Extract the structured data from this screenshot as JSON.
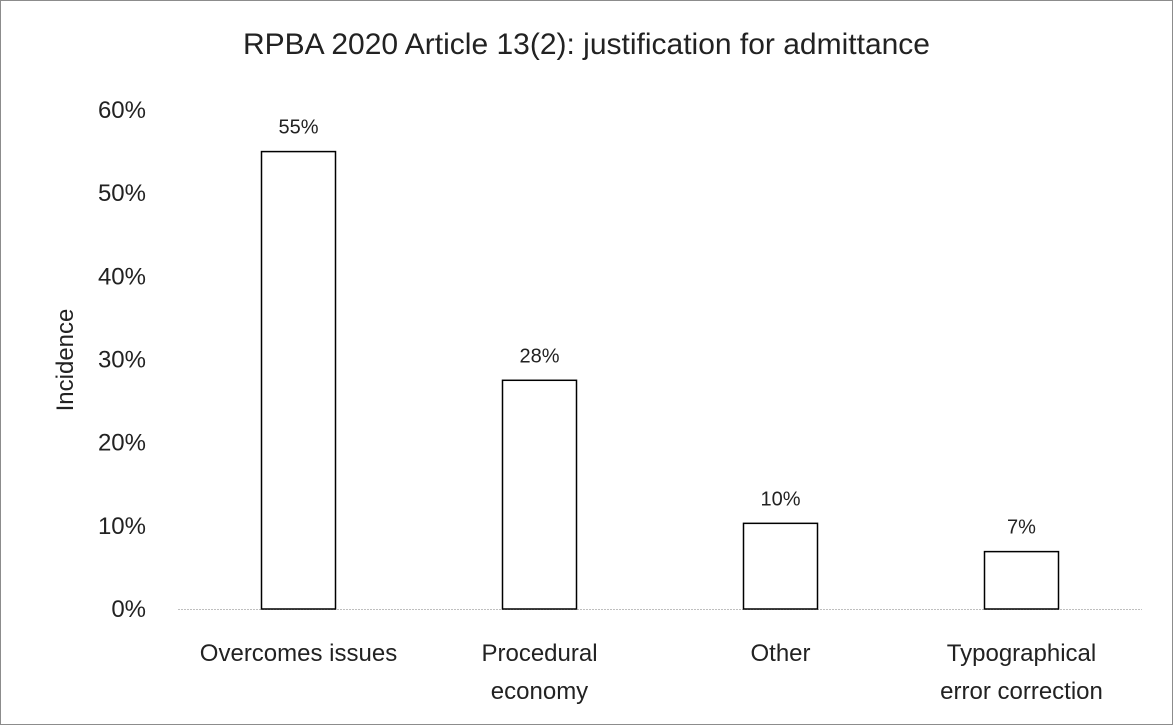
{
  "chart_data": {
    "type": "bar",
    "title": "RPBA 2020 Article 13(2): justification for admittance",
    "xlabel": "",
    "ylabel": "Incidence",
    "categories": [
      "Overcomes issues",
      "Procedural economy",
      "Other",
      "Typographical error correction"
    ],
    "category_lines": [
      [
        "Overcomes issues"
      ],
      [
        "Procedural",
        "economy"
      ],
      [
        "Other"
      ],
      [
        "Typographical",
        "error correction"
      ]
    ],
    "values": [
      55,
      27.5,
      10.3,
      6.9
    ],
    "data_labels": [
      "55%",
      "28%",
      "10%",
      "7%"
    ],
    "y_ticks": [
      "0%",
      "10%",
      "20%",
      "30%",
      "40%",
      "50%",
      "60%"
    ],
    "ylim": [
      0,
      60
    ],
    "grid": false,
    "legend": "none",
    "colors": {
      "bar_fill": "#ffffff",
      "bar_stroke": "#000000",
      "axis": "#bfbfbf"
    }
  }
}
